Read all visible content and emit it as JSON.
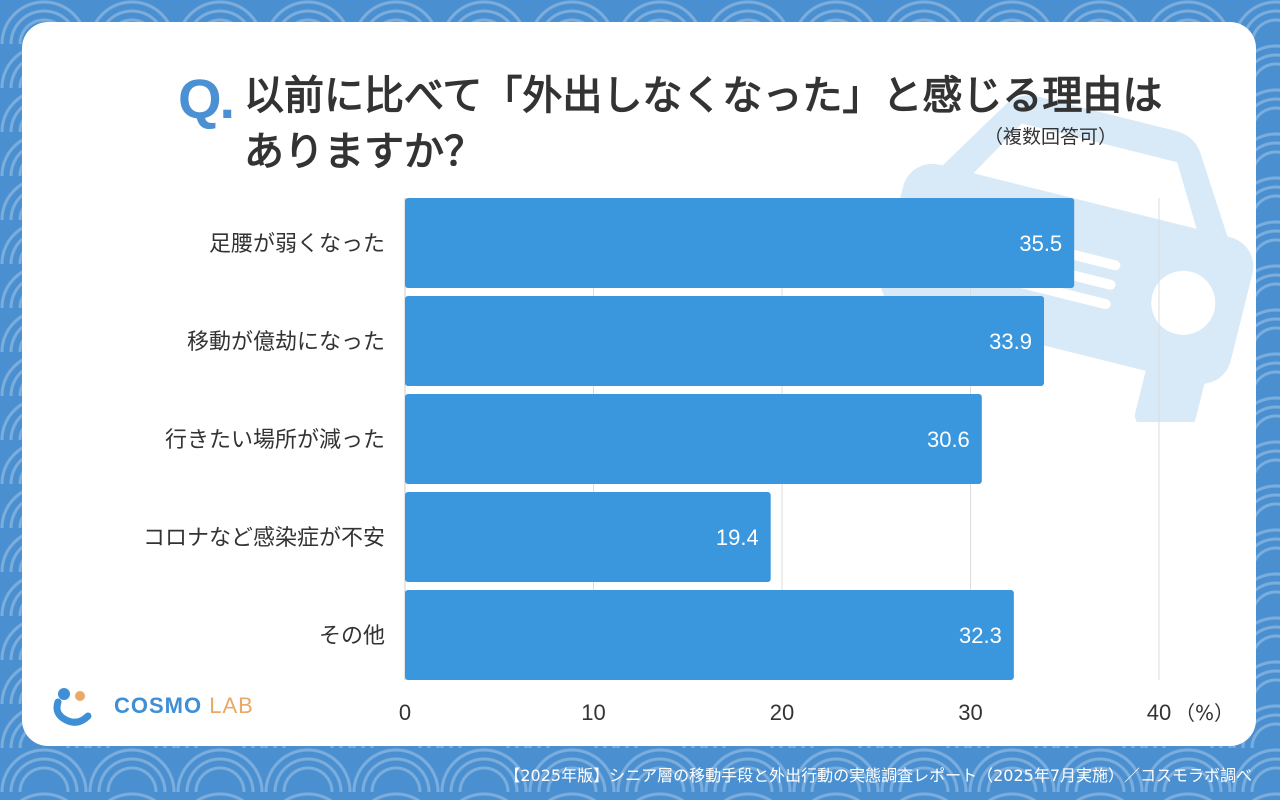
{
  "question": {
    "mark": "Q.",
    "text": "以前に比べて「外出しなくなった」と感じる理由はありますか？",
    "note": "（複数回答可）"
  },
  "chart_data": {
    "type": "bar",
    "orientation": "horizontal",
    "categories": [
      "足腰が弱くなった",
      "移動が億劫になった",
      "行きたい場所が減った",
      "コロナなど感染症が不安",
      "その他"
    ],
    "values": [
      35.5,
      33.9,
      30.6,
      19.4,
      32.3
    ],
    "value_labels": [
      "35.5",
      "33.9",
      "30.6",
      "19.4",
      "32.3"
    ],
    "xlim": [
      0,
      40
    ],
    "xticks": [
      0,
      10,
      20,
      30,
      40
    ],
    "xtick_labels": [
      "0",
      "10",
      "20",
      "30",
      "40"
    ],
    "unit": "（%）",
    "bar_color": "#3a97dd",
    "grid": true
  },
  "logo": {
    "name": "COSMO",
    "suffix": "LAB"
  },
  "footer": "【2025年版】シニア層の移動手段と外出行動の実態調査レポート（2025年7月実施）／コスモラボ調べ",
  "colors": {
    "background": "#4a8fd0",
    "accent": "#4a90d2",
    "logo_orange": "#e8a866"
  }
}
